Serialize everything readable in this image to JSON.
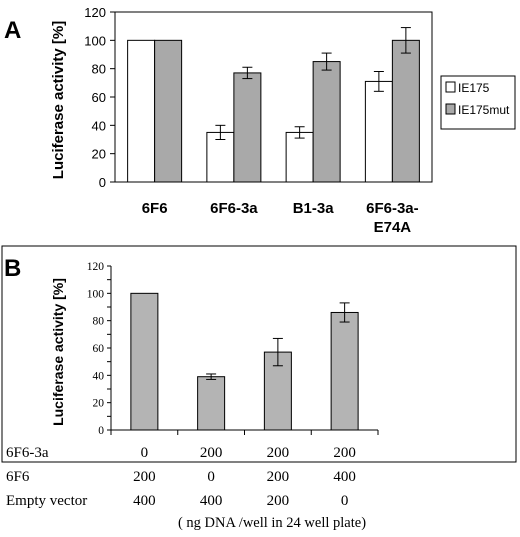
{
  "chart_data": [
    {
      "panel_label": "A",
      "type": "bar",
      "categories": [
        {
          "line1": "6F6",
          "line2": ""
        },
        {
          "line1": "6F6-3a",
          "line2": ""
        },
        {
          "line1": "B1-3a",
          "line2": ""
        },
        {
          "line1": "6F6-3a-",
          "line2": "E74A"
        }
      ],
      "series": [
        {
          "name": "IE175",
          "values": [
            100,
            35,
            35,
            71
          ],
          "errors": [
            0,
            5,
            4,
            7
          ],
          "color": "#ffffff"
        },
        {
          "name": "IE175mut",
          "values": [
            100,
            77,
            85,
            100
          ],
          "errors": [
            0,
            4,
            6,
            9
          ],
          "color": "#a9a9a9"
        }
      ],
      "ylabel": "Luciferase activity [%]",
      "ylim": [
        0,
        120
      ],
      "yticks": [
        "0",
        "20",
        "40",
        "60",
        "80",
        "100",
        "120"
      ],
      "legend_position": "right"
    },
    {
      "panel_label": "B",
      "type": "bar",
      "values": [
        100,
        39,
        57,
        86
      ],
      "errors": [
        0,
        2,
        10,
        7
      ],
      "color": "#b4b4b4",
      "ylabel": "Luciferase activity [%]",
      "ylim": [
        0,
        120
      ],
      "yticks": [
        "0",
        "10",
        "20",
        "30",
        "40",
        "50",
        "60",
        "70",
        "80",
        "90",
        "100",
        "110",
        "120"
      ],
      "table_rows": [
        {
          "label": "6F6-3a",
          "values": [
            "0",
            "200",
            "200",
            "200"
          ]
        },
        {
          "label": "6F6",
          "values": [
            "200",
            "0",
            "200",
            "400"
          ]
        },
        {
          "label": "Empty vector",
          "values": [
            "400",
            "400",
            "200",
            "0"
          ]
        }
      ],
      "footnote": "( ng DNA /well in 24 well plate)"
    }
  ]
}
